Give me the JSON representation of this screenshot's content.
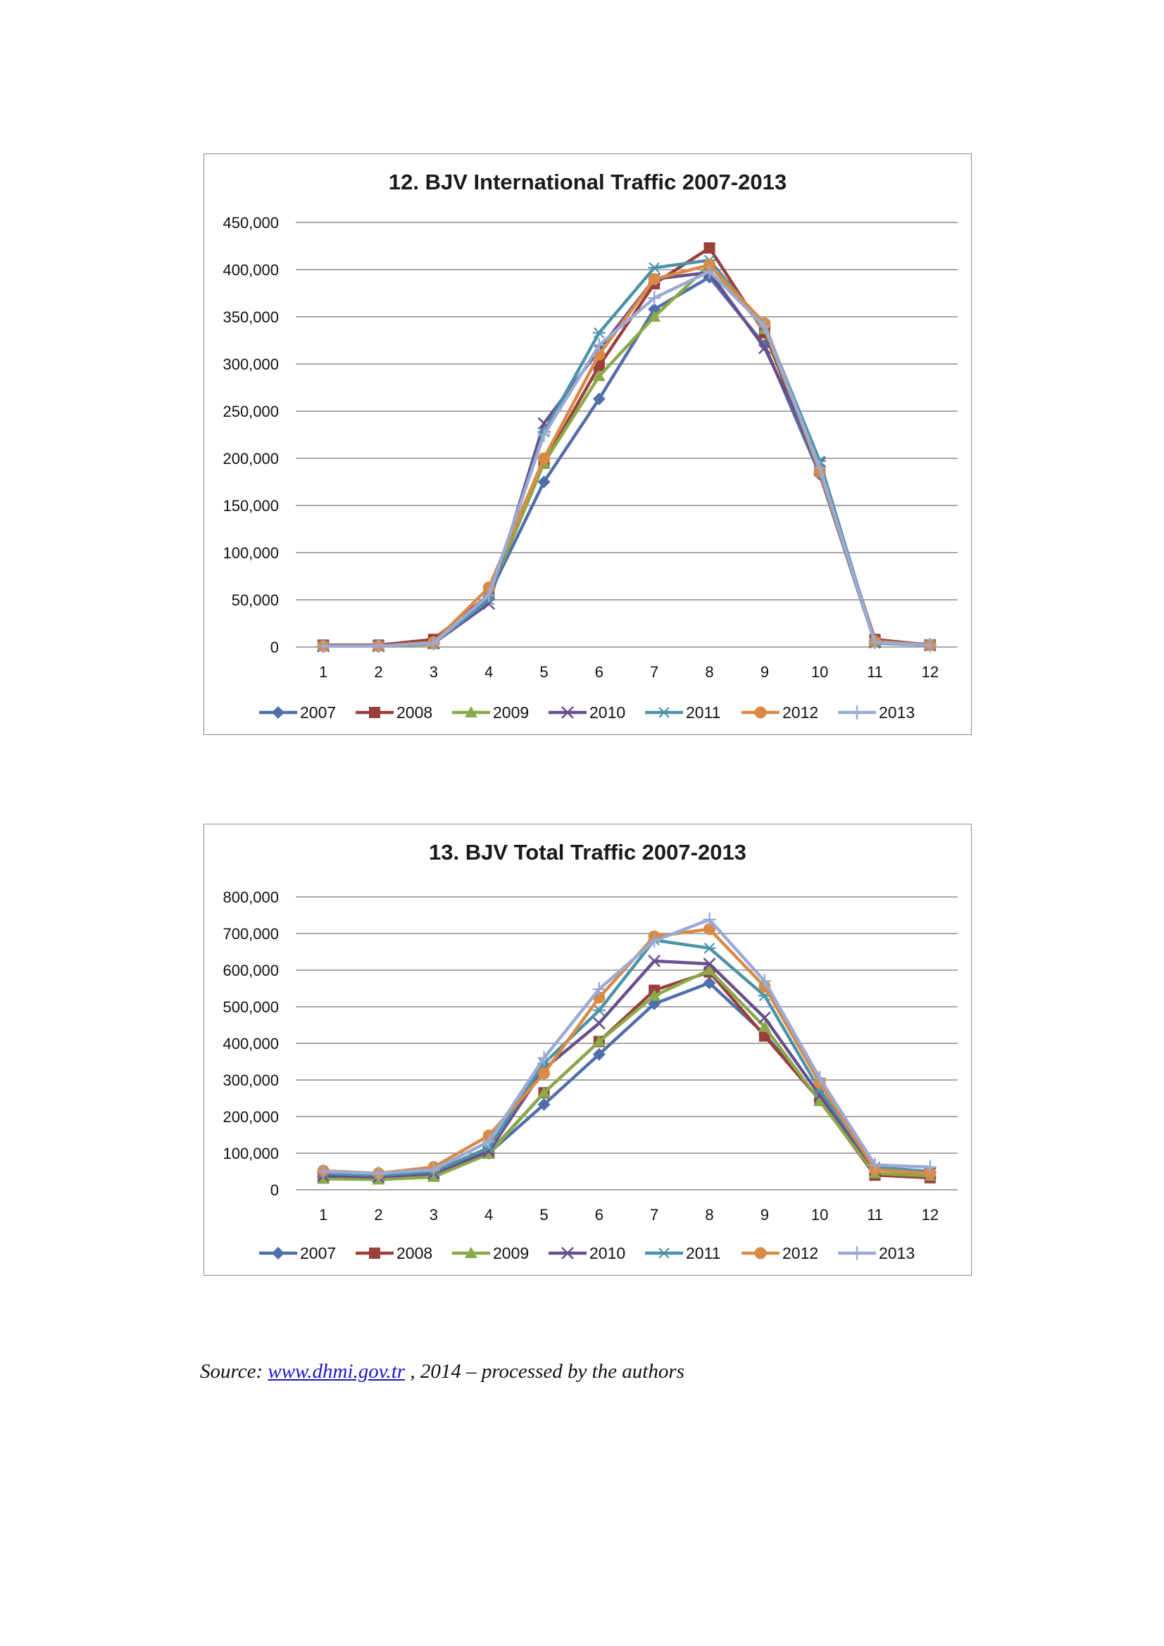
{
  "source": {
    "prefix": "Source:",
    "link_text": "www.dhmi.gov.tr",
    "suffix": " , 2014 – processed by the authors"
  },
  "series_style": [
    {
      "name": "2007",
      "color": "#4f6faa",
      "marker": "diamond"
    },
    {
      "name": "2008",
      "color": "#9b3f3c",
      "marker": "square"
    },
    {
      "name": "2009",
      "color": "#8aaa4a",
      "marker": "triangle"
    },
    {
      "name": "2010",
      "color": "#6a4f8e",
      "marker": "x"
    },
    {
      "name": "2011",
      "color": "#4c93a8",
      "marker": "star"
    },
    {
      "name": "2012",
      "color": "#d98a44",
      "marker": "circle"
    },
    {
      "name": "2013",
      "color": "#9aaad6",
      "marker": "plus"
    }
  ],
  "chart_data": [
    {
      "type": "line",
      "title": "12. BJV International Traffic 2007-2013",
      "xlabel": "",
      "ylabel": "",
      "categories": [
        "1",
        "2",
        "3",
        "4",
        "5",
        "6",
        "7",
        "8",
        "9",
        "10",
        "11",
        "12"
      ],
      "ylim": [
        0,
        450000
      ],
      "yticks": [
        0,
        50000,
        100000,
        150000,
        200000,
        250000,
        300000,
        350000,
        400000,
        450000
      ],
      "ytick_labels": [
        "0",
        "50,000",
        "100,000",
        "150,000",
        "200,000",
        "250,000",
        "300,000",
        "350,000",
        "400,000",
        "450,000"
      ],
      "grid": true,
      "legend": "bottom",
      "series": [
        {
          "name": "2007",
          "values": [
            1000,
            1000,
            3000,
            55000,
            175000,
            263000,
            358000,
            392000,
            320000,
            183000,
            5000,
            3000
          ]
        },
        {
          "name": "2008",
          "values": [
            2000,
            2000,
            8000,
            55000,
            195000,
            298000,
            385000,
            423000,
            333000,
            187000,
            8000,
            2000
          ]
        },
        {
          "name": "2009",
          "values": [
            1000,
            1000,
            3000,
            55000,
            195000,
            287000,
            350000,
            405000,
            337000,
            189000,
            6000,
            2000
          ]
        },
        {
          "name": "2010",
          "values": [
            1000,
            1000,
            4000,
            46000,
            237000,
            315000,
            390000,
            397000,
            317000,
            195000,
            5000,
            2000
          ]
        },
        {
          "name": "2011",
          "values": [
            1000,
            1000,
            4000,
            50000,
            228000,
            333000,
            402000,
            410000,
            340000,
            197000,
            4000,
            2000
          ]
        },
        {
          "name": "2012",
          "values": [
            1000,
            1000,
            5000,
            63000,
            200000,
            310000,
            390000,
            405000,
            343000,
            186000,
            6000,
            2000
          ]
        },
        {
          "name": "2013",
          "values": [
            1000,
            1000,
            4000,
            55000,
            225000,
            320000,
            370000,
            398000,
            340000,
            190000,
            5000,
            2000
          ]
        }
      ]
    },
    {
      "type": "line",
      "title": "13. BJV Total Traffic 2007-2013",
      "xlabel": "",
      "ylabel": "",
      "categories": [
        "1",
        "2",
        "3",
        "4",
        "5",
        "6",
        "7",
        "8",
        "9",
        "10",
        "11",
        "12"
      ],
      "ylim": [
        0,
        800000
      ],
      "yticks": [
        0,
        100000,
        200000,
        300000,
        400000,
        500000,
        600000,
        700000,
        800000
      ],
      "ytick_labels": [
        "0",
        "100,000",
        "200,000",
        "300,000",
        "400,000",
        "500,000",
        "600,000",
        "700,000",
        "800,000"
      ],
      "grid": true,
      "legend": "bottom",
      "series": [
        {
          "name": "2007",
          "values": [
            35000,
            32000,
            40000,
            100000,
            233000,
            370000,
            508000,
            565000,
            425000,
            245000,
            42000,
            35000
          ]
        },
        {
          "name": "2008",
          "values": [
            32000,
            30000,
            38000,
            100000,
            265000,
            405000,
            545000,
            595000,
            420000,
            245000,
            40000,
            33000
          ]
        },
        {
          "name": "2009",
          "values": [
            30000,
            28000,
            35000,
            98000,
            265000,
            405000,
            530000,
            600000,
            445000,
            242000,
            45000,
            38000
          ]
        },
        {
          "name": "2010",
          "values": [
            38000,
            35000,
            45000,
            105000,
            330000,
            455000,
            625000,
            617000,
            470000,
            258000,
            55000,
            45000
          ]
        },
        {
          "name": "2011",
          "values": [
            45000,
            40000,
            50000,
            115000,
            345000,
            490000,
            682000,
            660000,
            530000,
            272000,
            62000,
            50000
          ]
        },
        {
          "name": "2012",
          "values": [
            52000,
            45000,
            62000,
            148000,
            318000,
            525000,
            692000,
            712000,
            555000,
            292000,
            55000,
            45000
          ]
        },
        {
          "name": "2013",
          "values": [
            50000,
            45000,
            55000,
            132000,
            360000,
            548000,
            680000,
            738000,
            570000,
            305000,
            68000,
            62000
          ]
        }
      ]
    }
  ]
}
